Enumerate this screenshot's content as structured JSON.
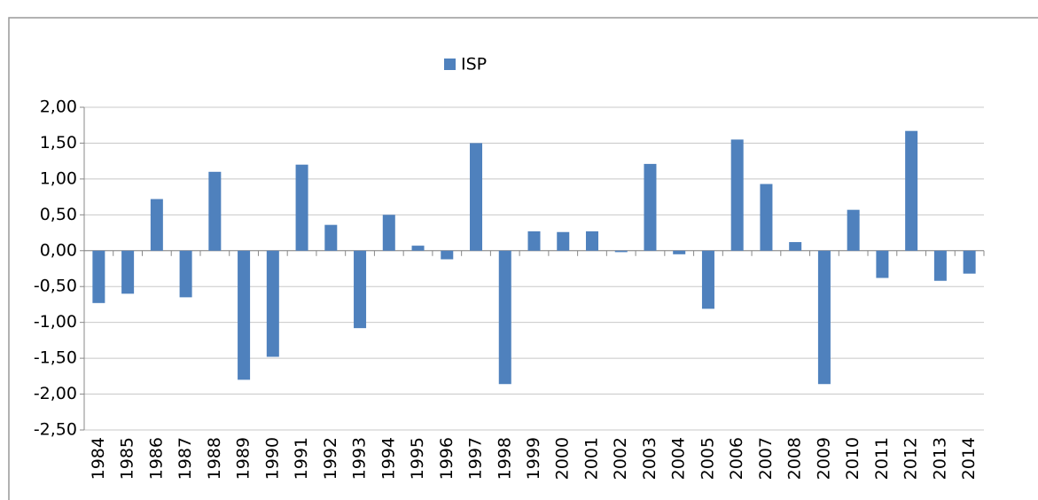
{
  "chart_data": {
    "type": "bar",
    "legend": "ISP",
    "categories": [
      "1984",
      "1985",
      "1986",
      "1987",
      "1988",
      "1989",
      "1990",
      "1991",
      "1992",
      "1993",
      "1994",
      "1995",
      "1996",
      "1997",
      "1998",
      "1999",
      "2000",
      "2001",
      "2002",
      "2003",
      "2004",
      "2005",
      "2006",
      "2007",
      "2008",
      "2009",
      "2010",
      "2011",
      "2012",
      "2013",
      "2014"
    ],
    "values": [
      -0.73,
      -0.6,
      0.72,
      -0.65,
      1.1,
      -1.8,
      -1.48,
      1.2,
      0.36,
      -1.08,
      0.5,
      0.07,
      -0.12,
      1.5,
      -1.86,
      0.27,
      0.26,
      0.27,
      -0.02,
      1.21,
      -0.05,
      -0.81,
      1.55,
      0.93,
      0.12,
      -1.86,
      0.57,
      -0.38,
      1.67,
      -0.42,
      -0.32
    ],
    "color": "#4f81bd",
    "ylim": [
      -2.5,
      2
    ],
    "yticks": [
      {
        "value": -2.5,
        "label": "-2,50"
      },
      {
        "value": -2,
        "label": "-2,00"
      },
      {
        "value": -1.5,
        "label": "-1,50"
      },
      {
        "value": -1,
        "label": "-1,00"
      },
      {
        "value": -0.5,
        "label": "-0,50"
      },
      {
        "value": 0,
        "label": "0,00"
      },
      {
        "value": 0.5,
        "label": "0,50"
      },
      {
        "value": 1,
        "label": "1,00"
      },
      {
        "value": 1.5,
        "label": "1,50"
      },
      {
        "value": 2,
        "label": "2,00"
      }
    ],
    "grid": true
  }
}
